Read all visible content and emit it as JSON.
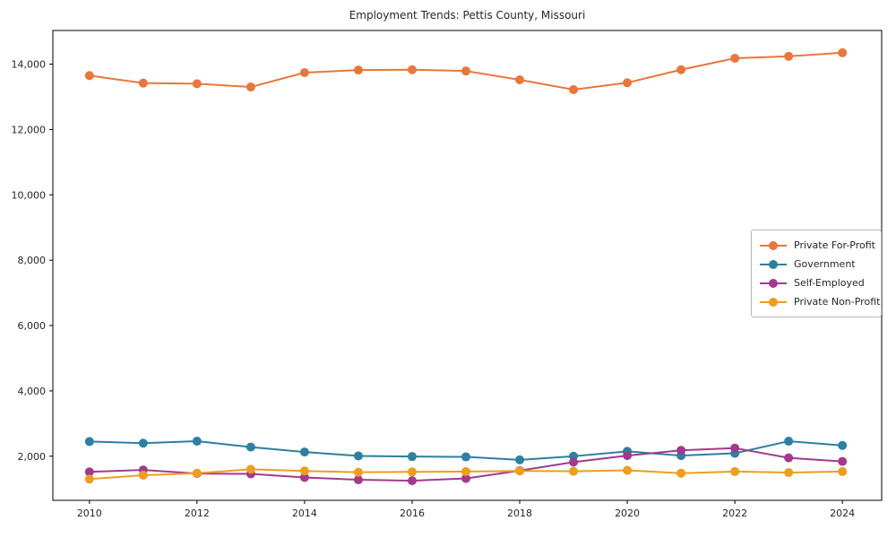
{
  "title": "Employment Trends: Pettis County, Missouri",
  "background_color": "#ffffff",
  "text_color": "#262626",
  "chart_data": {
    "type": "line",
    "title": "Employment Trends: Pettis County, Missouri",
    "xlabel": "",
    "ylabel": "",
    "grid": false,
    "legend_position": "center right",
    "frame_color": "#000000",
    "marker": "circle",
    "x": [
      2010,
      2011,
      2012,
      2013,
      2014,
      2015,
      2016,
      2017,
      2018,
      2019,
      2020,
      2021,
      2022,
      2023,
      2024
    ],
    "x_ticks": [
      2010,
      2012,
      2014,
      2016,
      2018,
      2020,
      2022,
      2024
    ],
    "x_tick_labels": [
      "2010",
      "2012",
      "2014",
      "2016",
      "2018",
      "2020",
      "2022",
      "2024"
    ],
    "y_ticks": [
      2000,
      4000,
      6000,
      8000,
      10000,
      12000,
      14000
    ],
    "y_tick_labels": [
      "2,000",
      "4,000",
      "6,000",
      "8,000",
      "10,000",
      "12,000",
      "14,000"
    ],
    "xlim": [
      2009.32,
      2024.73
    ],
    "ylim": [
      650,
      15030
    ],
    "series": [
      {
        "name": "Private For-Profit",
        "color": "#e8773c",
        "values": [
          13650,
          13420,
          13400,
          13300,
          13740,
          13820,
          13830,
          13790,
          13520,
          13220,
          13430,
          13830,
          14180,
          14240,
          14350
        ]
      },
      {
        "name": "Government",
        "color": "#2e7fa0",
        "values": [
          2450,
          2400,
          2460,
          2280,
          2130,
          2010,
          1990,
          1980,
          1890,
          2000,
          2150,
          2020,
          2090,
          2460,
          2330
        ]
      },
      {
        "name": "Self-Employed",
        "color": "#a23a8c",
        "values": [
          1520,
          1580,
          1470,
          1460,
          1350,
          1280,
          1250,
          1320,
          1560,
          1820,
          2020,
          2180,
          2250,
          1950,
          1840
        ]
      },
      {
        "name": "Private Non-Profit",
        "color": "#ee9d20",
        "values": [
          1300,
          1420,
          1480,
          1600,
          1550,
          1510,
          1520,
          1530,
          1550,
          1540,
          1570,
          1480,
          1530,
          1500,
          1530
        ]
      }
    ]
  }
}
